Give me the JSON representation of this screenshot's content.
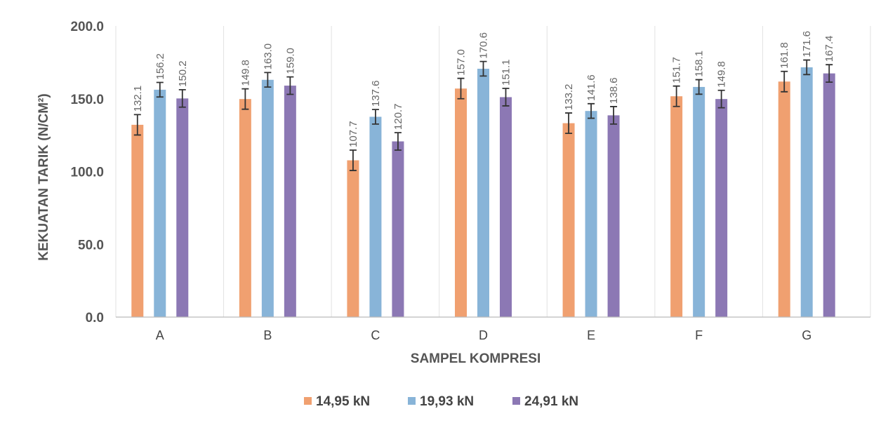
{
  "chart_data": {
    "type": "bar",
    "ylabel": "KEKUATAN TARIK (N/CM²)",
    "xlabel": "SAMPEL KOMPRESI",
    "ylim": [
      0,
      200
    ],
    "yticks": [
      "0.0",
      "50.0",
      "100.0",
      "150.0",
      "200.0"
    ],
    "categories": [
      "A",
      "B",
      "C",
      "D",
      "E",
      "F",
      "G"
    ],
    "grid": "vertical category separators",
    "legend_position": "bottom-center",
    "series": [
      {
        "name": "14,95 kN",
        "color": "#f0a070",
        "values": [
          132.1,
          149.8,
          107.7,
          157.0,
          133.2,
          151.7,
          161.8
        ],
        "labels": [
          "132.1",
          "149.8",
          "107.7",
          "157.0",
          "133.2",
          "151.7",
          "161.8"
        ],
        "error": [
          7,
          7,
          7,
          7,
          7,
          7,
          7
        ]
      },
      {
        "name": "19,93 kN",
        "color": "#88b4d8",
        "values": [
          156.2,
          163.0,
          137.6,
          170.6,
          141.6,
          158.1,
          171.6
        ],
        "labels": [
          "156.2",
          "163.0",
          "137.6",
          "170.6",
          "141.6",
          "158.1",
          "171.6"
        ],
        "error": [
          5,
          5,
          5,
          5,
          5,
          5,
          5
        ]
      },
      {
        "name": "24,91 kN",
        "color": "#8c78b4",
        "values": [
          150.2,
          159.0,
          120.7,
          151.1,
          138.6,
          149.8,
          167.4
        ],
        "labels": [
          "150.2",
          "159.0",
          "120.7",
          "151.1",
          "138.6",
          "149.8",
          "167.4"
        ],
        "error": [
          6,
          6,
          6,
          6,
          6,
          6,
          6
        ]
      }
    ]
  }
}
